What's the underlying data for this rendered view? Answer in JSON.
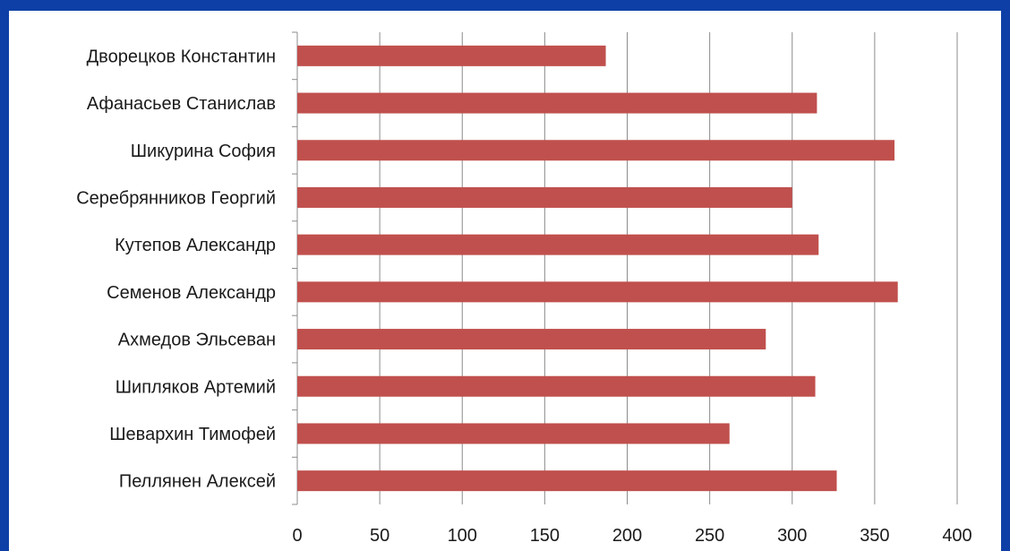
{
  "chart_data": {
    "type": "bar",
    "orientation": "horizontal",
    "title": "",
    "xlabel": "",
    "ylabel": "",
    "xlim": [
      0,
      400
    ],
    "x_ticks": [
      0,
      50,
      100,
      150,
      200,
      250,
      300,
      350,
      400
    ],
    "grid": "vertical",
    "legend": "none",
    "bar_color": "#c0504d",
    "categories": [
      "Дворецков Константин",
      "Афанасьев Станислав",
      "Шикурина София",
      "Серебрянников Георгий",
      "Кутепов Александр",
      "Семенов Александр",
      "Ахмедов Эльсеван",
      "Шипляков Артемий",
      "Шевархин Тимофей",
      "Пеллянен Алексей"
    ],
    "values": [
      187,
      315,
      362,
      300,
      316,
      364,
      284,
      314,
      262,
      327
    ]
  }
}
